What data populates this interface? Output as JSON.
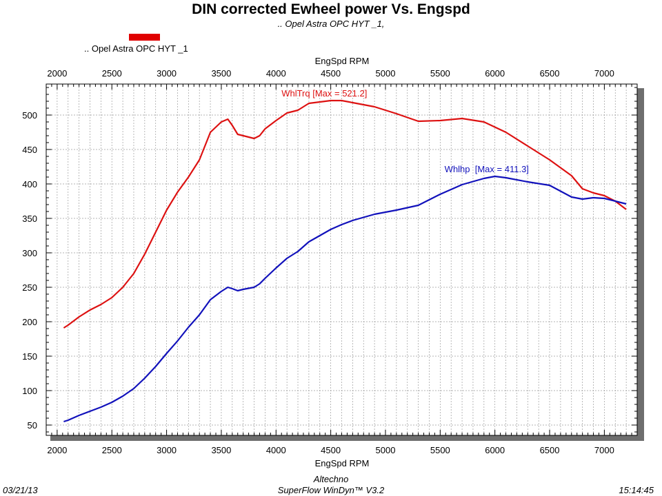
{
  "chart_data": {
    "type": "line",
    "title": "DIN corrected Ewheel power Vs. Engspd",
    "subtitle": ".. Opel Astra OPC HYT _1,",
    "legend": {
      "label": ".. Opel Astra OPC HYT _1",
      "color": "#e00000",
      "placement": "top-left"
    },
    "xlabel": "EngSpd RPM",
    "xlim": [
      1900,
      7300
    ],
    "ylim": [
      35,
      545
    ],
    "xticks": [
      2000,
      2500,
      3000,
      3500,
      4000,
      4500,
      5000,
      5500,
      6000,
      6500,
      7000
    ],
    "yticks": [
      50,
      100,
      150,
      200,
      250,
      300,
      350,
      400,
      450,
      500
    ],
    "grid": true,
    "series": [
      {
        "name": "WhlTrq",
        "color": "#dd1111",
        "annotation": "WhlTrq [Max = 521.2]",
        "points": [
          [
            2060,
            191
          ],
          [
            2100,
            195
          ],
          [
            2200,
            207
          ],
          [
            2300,
            217
          ],
          [
            2400,
            225
          ],
          [
            2500,
            235
          ],
          [
            2600,
            250
          ],
          [
            2700,
            270
          ],
          [
            2800,
            298
          ],
          [
            2900,
            330
          ],
          [
            3000,
            362
          ],
          [
            3100,
            388
          ],
          [
            3200,
            410
          ],
          [
            3300,
            435
          ],
          [
            3400,
            475
          ],
          [
            3500,
            490
          ],
          [
            3560,
            494
          ],
          [
            3600,
            485
          ],
          [
            3650,
            472
          ],
          [
            3700,
            470
          ],
          [
            3800,
            466
          ],
          [
            3850,
            470
          ],
          [
            3900,
            480
          ],
          [
            4000,
            492
          ],
          [
            4100,
            503
          ],
          [
            4200,
            507
          ],
          [
            4300,
            517
          ],
          [
            4400,
            519
          ],
          [
            4500,
            521
          ],
          [
            4600,
            521
          ],
          [
            4700,
            518
          ],
          [
            4900,
            512
          ],
          [
            5100,
            502
          ],
          [
            5300,
            491
          ],
          [
            5500,
            492
          ],
          [
            5700,
            495
          ],
          [
            5900,
            490
          ],
          [
            6100,
            475
          ],
          [
            6300,
            455
          ],
          [
            6500,
            435
          ],
          [
            6700,
            412
          ],
          [
            6800,
            393
          ],
          [
            6900,
            387
          ],
          [
            7000,
            383
          ],
          [
            7100,
            375
          ],
          [
            7200,
            363
          ]
        ]
      },
      {
        "name": "Whlhp",
        "color": "#1111bb",
        "annotation": "Whlhp  [Max = 411.3]",
        "points": [
          [
            2060,
            55
          ],
          [
            2100,
            57
          ],
          [
            2200,
            64
          ],
          [
            2300,
            70
          ],
          [
            2400,
            76
          ],
          [
            2500,
            83
          ],
          [
            2600,
            92
          ],
          [
            2700,
            103
          ],
          [
            2800,
            118
          ],
          [
            2900,
            135
          ],
          [
            3000,
            154
          ],
          [
            3100,
            172
          ],
          [
            3200,
            192
          ],
          [
            3300,
            210
          ],
          [
            3400,
            232
          ],
          [
            3500,
            244
          ],
          [
            3560,
            250
          ],
          [
            3600,
            248
          ],
          [
            3650,
            245
          ],
          [
            3700,
            247
          ],
          [
            3800,
            250
          ],
          [
            3850,
            255
          ],
          [
            3900,
            263
          ],
          [
            4000,
            278
          ],
          [
            4100,
            292
          ],
          [
            4200,
            302
          ],
          [
            4300,
            316
          ],
          [
            4400,
            325
          ],
          [
            4500,
            334
          ],
          [
            4600,
            341
          ],
          [
            4700,
            347
          ],
          [
            4900,
            356
          ],
          [
            5100,
            362
          ],
          [
            5300,
            369
          ],
          [
            5500,
            385
          ],
          [
            5700,
            399
          ],
          [
            5900,
            408
          ],
          [
            6000,
            411
          ],
          [
            6100,
            409
          ],
          [
            6300,
            403
          ],
          [
            6500,
            398
          ],
          [
            6700,
            381
          ],
          [
            6800,
            378
          ],
          [
            6900,
            380
          ],
          [
            7000,
            379
          ],
          [
            7100,
            375
          ],
          [
            7200,
            371
          ]
        ]
      }
    ]
  },
  "footer": {
    "date": "03/21/13",
    "company": "Altechno",
    "software": "SuperFlow WinDyn™ V3.2",
    "time": "15:14:45"
  }
}
